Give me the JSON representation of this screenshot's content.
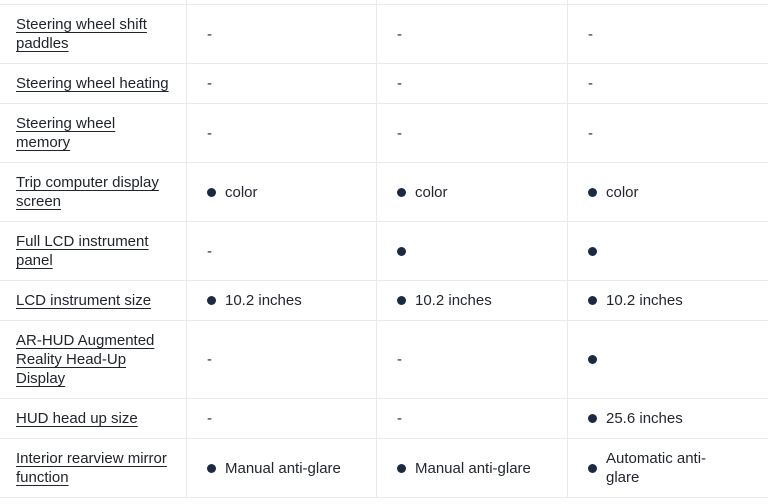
{
  "colors": {
    "background": "#ffffff",
    "border": "#e9eaee",
    "text": "#23272f",
    "link_text": "#20242c",
    "dot": "#1b2a44"
  },
  "icons": {
    "presence_dot": "filled-circle"
  },
  "table": {
    "rows": [
      {
        "feature": "Steering wheel shift\npaddles",
        "cells": [
          {
            "dot": false,
            "text": "-"
          },
          {
            "dot": false,
            "text": "-"
          },
          {
            "dot": false,
            "text": "-"
          }
        ]
      },
      {
        "feature": "Steering wheel heating",
        "cells": [
          {
            "dot": false,
            "text": "-"
          },
          {
            "dot": false,
            "text": "-"
          },
          {
            "dot": false,
            "text": "-"
          }
        ]
      },
      {
        "feature": "Steering wheel\nmemory",
        "cells": [
          {
            "dot": false,
            "text": "-"
          },
          {
            "dot": false,
            "text": "-"
          },
          {
            "dot": false,
            "text": "-"
          }
        ]
      },
      {
        "feature": "Trip computer display\nscreen",
        "cells": [
          {
            "dot": true,
            "text": "color"
          },
          {
            "dot": true,
            "text": "color"
          },
          {
            "dot": true,
            "text": "color"
          }
        ]
      },
      {
        "feature": "Full LCD instrument\npanel",
        "cells": [
          {
            "dot": false,
            "text": "-"
          },
          {
            "dot": true,
            "text": ""
          },
          {
            "dot": true,
            "text": ""
          }
        ]
      },
      {
        "feature": "LCD instrument size",
        "cells": [
          {
            "dot": true,
            "text": "10.2 inches"
          },
          {
            "dot": true,
            "text": "10.2 inches"
          },
          {
            "dot": true,
            "text": "10.2 inches"
          }
        ]
      },
      {
        "feature": "AR-HUD Augmented\nReality Head-Up\nDisplay",
        "cells": [
          {
            "dot": false,
            "text": "-"
          },
          {
            "dot": false,
            "text": "-"
          },
          {
            "dot": true,
            "text": ""
          }
        ]
      },
      {
        "feature": "HUD head up size",
        "cells": [
          {
            "dot": false,
            "text": "-"
          },
          {
            "dot": false,
            "text": "-"
          },
          {
            "dot": true,
            "text": "25.6 inches"
          }
        ]
      },
      {
        "feature": "Interior rearview mirror\nfunction",
        "cells": [
          {
            "dot": true,
            "text": "Manual anti-glare"
          },
          {
            "dot": true,
            "text": "Manual anti-glare"
          },
          {
            "dot": true,
            "text": "Automatic anti-\nglare"
          }
        ]
      }
    ]
  }
}
